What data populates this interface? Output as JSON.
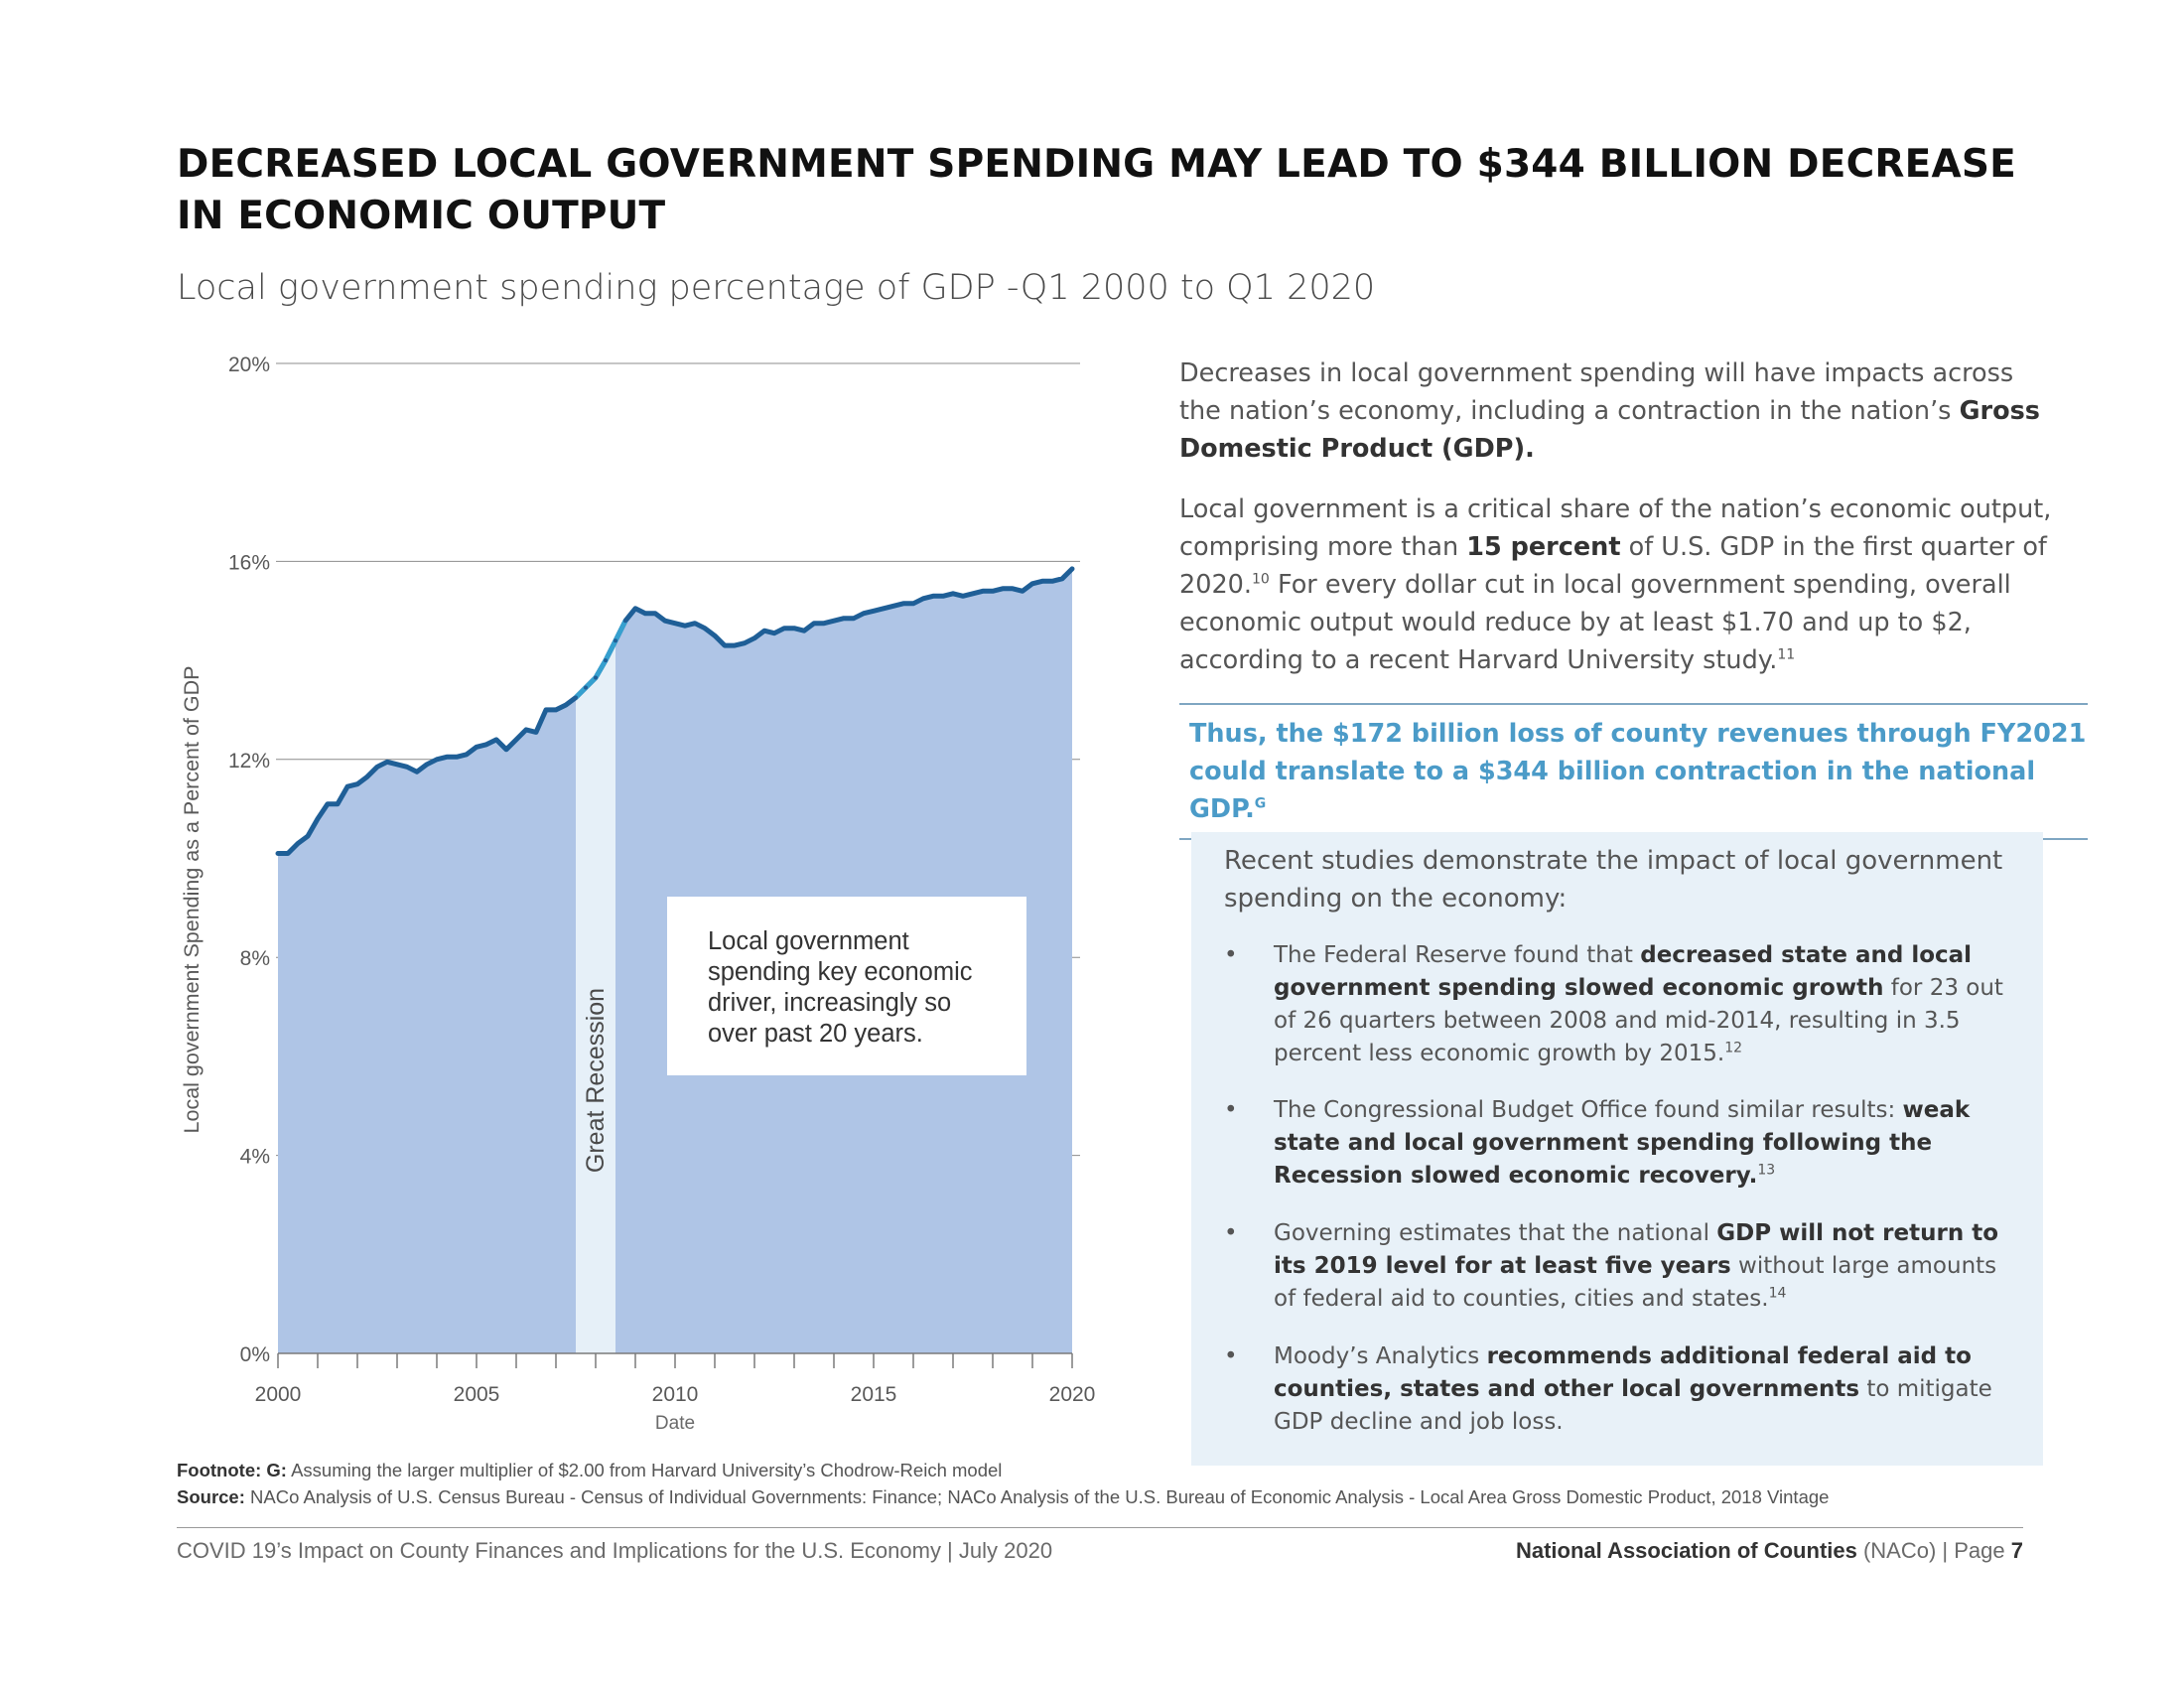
{
  "page": {
    "title_line1": "DECREASED LOCAL GOVERNMENT SPENDING MAY LEAD TO $344 BILLION DECREASE",
    "title_line2": "IN ECONOMIC OUTPUT",
    "subtitle": "Local government spending percentage of GDP -Q1 2000 to Q1 2020"
  },
  "chart_data": {
    "type": "area",
    "title": "Local government spending percentage of GDP -Q1 2000 to Q1 2020",
    "xlabel": "Date",
    "ylabel": "Local government Spending as a Percent of GDP",
    "xlim": [
      2000,
      2020
    ],
    "ylim": [
      0,
      20
    ],
    "x_ticks": [
      2000,
      2005,
      2010,
      2015,
      2020
    ],
    "y_ticks": [
      0,
      4,
      8,
      12,
      16,
      20
    ],
    "y_tick_labels": [
      "0%",
      "4%",
      "8%",
      "12%",
      "16%",
      "20%"
    ],
    "grid": true,
    "colors": {
      "area": "#afc5e6",
      "line": "#1f5f97",
      "recession_line": "#36a0cf",
      "recession_band": "#e6f0f8"
    },
    "series": [
      {
        "name": "Local government spending % of GDP",
        "x": [
          2000.0,
          2000.25,
          2000.5,
          2000.75,
          2001.0,
          2001.25,
          2001.5,
          2001.75,
          2002.0,
          2002.25,
          2002.5,
          2002.75,
          2003.0,
          2003.25,
          2003.5,
          2003.75,
          2004.0,
          2004.25,
          2004.5,
          2004.75,
          2005.0,
          2005.25,
          2005.5,
          2005.75,
          2006.0,
          2006.25,
          2006.5,
          2006.75,
          2007.0,
          2007.25,
          2007.5,
          2007.75,
          2008.0,
          2008.25,
          2008.5,
          2008.75,
          2009.0,
          2009.25,
          2009.5,
          2009.75,
          2010.0,
          2010.25,
          2010.5,
          2010.75,
          2011.0,
          2011.25,
          2011.5,
          2011.75,
          2012.0,
          2012.25,
          2012.5,
          2012.75,
          2013.0,
          2013.25,
          2013.5,
          2013.75,
          2014.0,
          2014.25,
          2014.5,
          2014.75,
          2015.0,
          2015.25,
          2015.5,
          2015.75,
          2016.0,
          2016.25,
          2016.5,
          2016.75,
          2017.0,
          2017.25,
          2017.5,
          2017.75,
          2018.0,
          2018.25,
          2018.5,
          2018.75,
          2019.0,
          2019.25,
          2019.5,
          2019.75,
          2020.0
        ],
        "values": [
          10.1,
          10.1,
          10.3,
          10.45,
          10.8,
          11.1,
          11.1,
          11.45,
          11.5,
          11.65,
          11.85,
          11.95,
          11.9,
          11.85,
          11.75,
          11.9,
          12.0,
          12.05,
          12.05,
          12.1,
          12.25,
          12.3,
          12.4,
          12.2,
          12.4,
          12.6,
          12.55,
          13.0,
          13.0,
          13.1,
          13.25,
          13.45,
          13.65,
          14.0,
          14.4,
          14.8,
          15.05,
          14.95,
          14.95,
          14.8,
          14.75,
          14.7,
          14.75,
          14.65,
          14.5,
          14.3,
          14.3,
          14.35,
          14.45,
          14.6,
          14.55,
          14.65,
          14.65,
          14.6,
          14.75,
          14.75,
          14.8,
          14.85,
          14.85,
          14.95,
          15.0,
          15.05,
          15.1,
          15.15,
          15.15,
          15.25,
          15.3,
          15.3,
          15.35,
          15.3,
          15.35,
          15.4,
          15.4,
          15.45,
          15.45,
          15.4,
          15.55,
          15.6,
          15.6,
          15.65,
          15.85
        ]
      }
    ],
    "recession": {
      "label": "Great Recession",
      "start": 2007.5,
      "end": 2008.5
    },
    "annotation": "Local government spending key economic driver, increasingly so over past 20 years.",
    "annotation_lines": [
      "Local government",
      "spending key economic",
      "driver, increasingly so",
      "over past 20 years."
    ]
  },
  "text": {
    "p1_a": "Decreases in local government spending will have impacts across the nation’s economy, including a contraction in the nation’s ",
    "p1_b": "Gross Domestic Product (GDP).",
    "p2_a": "Local government is a critical share of the nation’s economic output, comprising more than ",
    "p2_b": "15 percent",
    "p2_c": " of U.S. GDP in the first quarter of 2020.",
    "p2_sup1": "10",
    "p2_d": " For every dollar cut in local government spending, overall economic output would reduce by at least $1.70 and up to $2, according to a recent Harvard University study.",
    "p2_sup2": "11",
    "callout_line1": "Thus, the $172 billion loss of county revenues through FY2021",
    "callout_line2": "could translate to a $344 billion contraction in the national GDP.",
    "callout_sup": "G"
  },
  "studies": {
    "intro": "Recent studies demonstrate the impact of local government spending on the economy:",
    "bullet_char": "•",
    "b1_a": "The Federal Reserve found that ",
    "b1_b": "decreased state and local government spending slowed economic growth",
    "b1_c": " for 23 out of 26 quarters between 2008 and mid-2014, resulting in 3.5 percent less economic growth by 2015.",
    "b1_sup": "12",
    "b2_a": "The Congressional Budget Office found similar results: ",
    "b2_b": "weak state and local government spending following the Recession slowed economic recovery.",
    "b2_sup": "13",
    "b3_a": "Governing estimates that the national ",
    "b3_b": "GDP will not return to its 2019 level for at least five years",
    "b3_c": " without large amounts of federal aid to counties, cities and states.",
    "b3_sup": "14",
    "b4_a": "Moody’s Analytics ",
    "b4_b": "recommends additional federal aid to counties, states and other local governments",
    "b4_c": " to mitigate GDP decline and job loss."
  },
  "footnotes": {
    "footnote_label": "Footnote: G:",
    "footnote_text": " Assuming the larger multiplier of $2.00 from Harvard University’s Chodrow-Reich model",
    "source_label": "Source:",
    "source_text": " NACo Analysis of U.S. Census Bureau - Census of Individual Governments: Finance; NACo Analysis of the U.S. Bureau of Economic Analysis - Local Area Gross Domestic Product, 2018 Vintage"
  },
  "footer": {
    "left": "COVID 19’s Impact on County Finances and Implications for the U.S. Economy | July 2020",
    "org": "National Association of Counties",
    "org_abbr": " (NACo) | Page ",
    "page_number": "7"
  }
}
